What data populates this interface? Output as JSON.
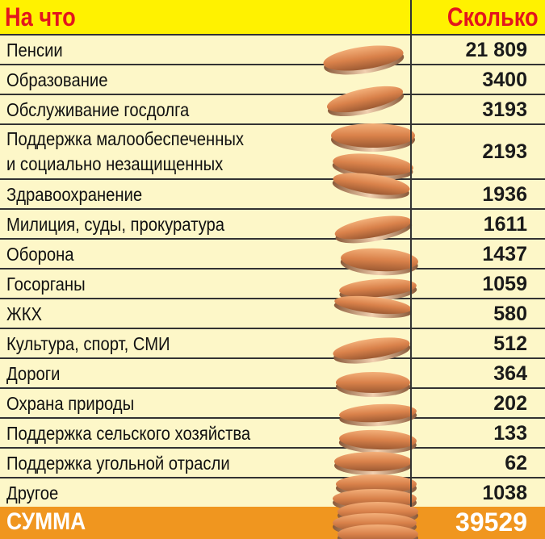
{
  "header": {
    "left": "На что",
    "right": "Сколько"
  },
  "rows": [
    {
      "label": "Пенсии",
      "value": "21 809"
    },
    {
      "label": "Образование",
      "value": "3400"
    },
    {
      "label": "Обслуживание госдолга",
      "value": "3193"
    },
    {
      "label": "Поддержка малообеспеченных",
      "label2": "и социально незащищенных",
      "value": "2193"
    },
    {
      "label": "Здравоохранение",
      "value": "1936"
    },
    {
      "label": "Милиция, суды, прокуратура",
      "value": "1611"
    },
    {
      "label": "Оборона",
      "value": "1437"
    },
    {
      "label": "Госорганы",
      "value": "1059"
    },
    {
      "label": "ЖКХ",
      "value": "580"
    },
    {
      "label": "Культура, спорт, СМИ",
      "value": "512"
    },
    {
      "label": "Дороги",
      "value": "364"
    },
    {
      "label": "Охрана природы",
      "value": "202"
    },
    {
      "label": "Поддержка сельского хозяйства",
      "value": "133"
    },
    {
      "label": "Поддержка угольной отрасли",
      "value": "62"
    },
    {
      "label": "Другое",
      "value": "1038"
    }
  ],
  "total": {
    "label": "СУММА",
    "value": "39529"
  },
  "colors": {
    "header_bg": "#fff200",
    "header_text": "#e3161d",
    "row_bg": "#fdf7c8",
    "total_bg": "#f0961f"
  },
  "illustration": "coin-stack"
}
